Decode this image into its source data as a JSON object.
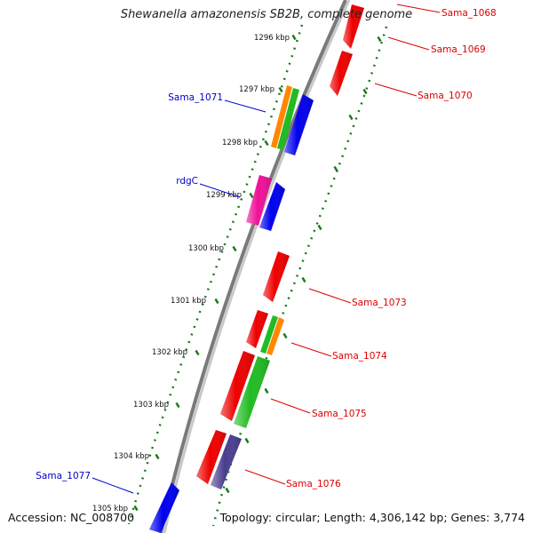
{
  "title": "Shewanella amazonensis SB2B, complete genome",
  "accession": "Accession: NC_008700",
  "summary": "Topology: circular; Length: 4,306,142 bp; Genes: 3,774",
  "colors": {
    "backbone": "#808080",
    "tick": "#1a7a1a",
    "forward_label": "#0000cc",
    "reverse_label": "#dd0000",
    "red": "#ee0000",
    "blue": "#0000ee",
    "green": "#22bb22",
    "orange": "#ff8800",
    "magenta": "#ee1199",
    "purple": "#4a3f8f"
  },
  "kbp_ticks": [
    "1296 kbp",
    "1297 kbp",
    "1298 kbp",
    "1299 kbp",
    "1300 kbp",
    "1301 kbp",
    "1302 kbp",
    "1303 kbp",
    "1304 kbp",
    "1305 kbp"
  ],
  "labels": {
    "forward": [
      "Sama_1071",
      "rdgC",
      "Sama_1077"
    ],
    "reverse": [
      "Sama_1068",
      "Sama_1069",
      "Sama_1070",
      "Sama_1073",
      "Sama_1074",
      "Sama_1075",
      "Sama_1076"
    ]
  }
}
